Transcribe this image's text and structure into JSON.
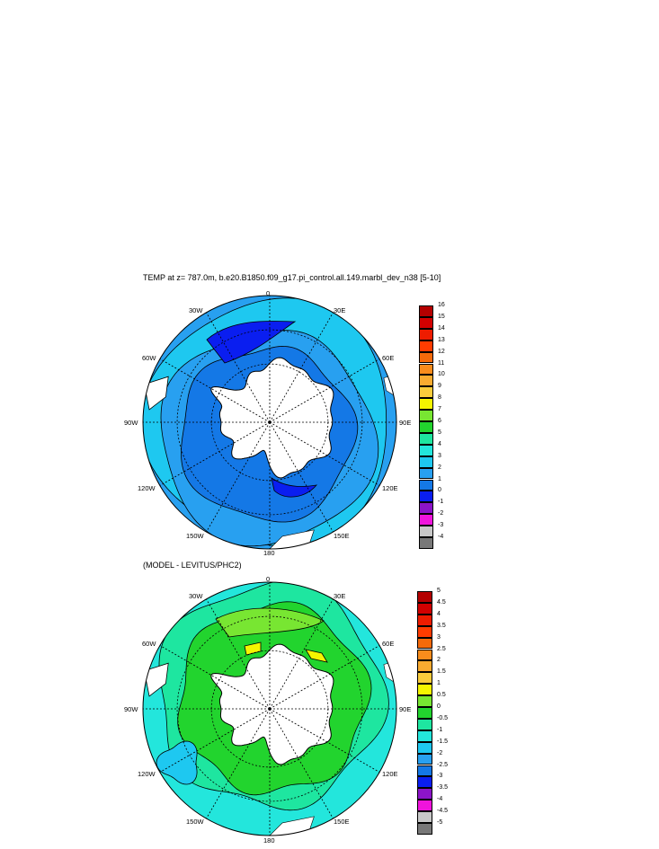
{
  "maps": [
    {
      "title": "TEMP at z= 787.0m, b.e20.B1850.f09_g17.pi_control.all.149.marbl_dev_n38 [5-10]",
      "lon_labels": [
        "0",
        "30E",
        "60E",
        "90E",
        "120E",
        "150E",
        "180",
        "150W",
        "120W",
        "90W",
        "60W",
        "30W"
      ],
      "colorbar": {
        "labels": [
          "16",
          "15",
          "14",
          "13",
          "12",
          "11",
          "10",
          "9",
          "8",
          "7",
          "6",
          "5",
          "4",
          "3",
          "2",
          "1",
          "0",
          "-1",
          "-2",
          "-3",
          "-4"
        ],
        "colors": [
          "#b40000",
          "#d20000",
          "#ee1c00",
          "#ff3c00",
          "#f56a0a",
          "#f88c1c",
          "#f9ab30",
          "#f9cc3c",
          "#f5f500",
          "#78e632",
          "#22d42e",
          "#1ee6a0",
          "#23e6dc",
          "#1ec8f0",
          "#28a0f0",
          "#1478e6",
          "#0a1ef0",
          "#8c14c8",
          "#f014dc",
          "#c8c8c8",
          "#787878"
        ]
      }
    },
    {
      "title": "(MODEL - LEVITUS/PHC2)",
      "lon_labels": [
        "0",
        "30E",
        "60E",
        "90E",
        "120E",
        "150E",
        "180",
        "150W",
        "120W",
        "90W",
        "60W",
        "30W"
      ],
      "colorbar": {
        "labels": [
          "5",
          "4.5",
          "4",
          "3.5",
          "3",
          "2.5",
          "2",
          "1.5",
          "1",
          "0.5",
          "0",
          "-0.5",
          "-1",
          "-1.5",
          "-2",
          "-2.5",
          "-3",
          "-3.5",
          "-4",
          "-4.5",
          "-5"
        ],
        "colors": [
          "#b40000",
          "#d20000",
          "#ee1c00",
          "#ff3c00",
          "#f56a0a",
          "#f88c1c",
          "#f9ab30",
          "#f9cc3c",
          "#f5f500",
          "#78e632",
          "#22d42e",
          "#1ee6a0",
          "#23e6dc",
          "#1ec8f0",
          "#28a0f0",
          "#1478e6",
          "#0a1ef0",
          "#8c14c8",
          "#f014dc",
          "#c8c8c8",
          "#787878"
        ]
      }
    }
  ]
}
